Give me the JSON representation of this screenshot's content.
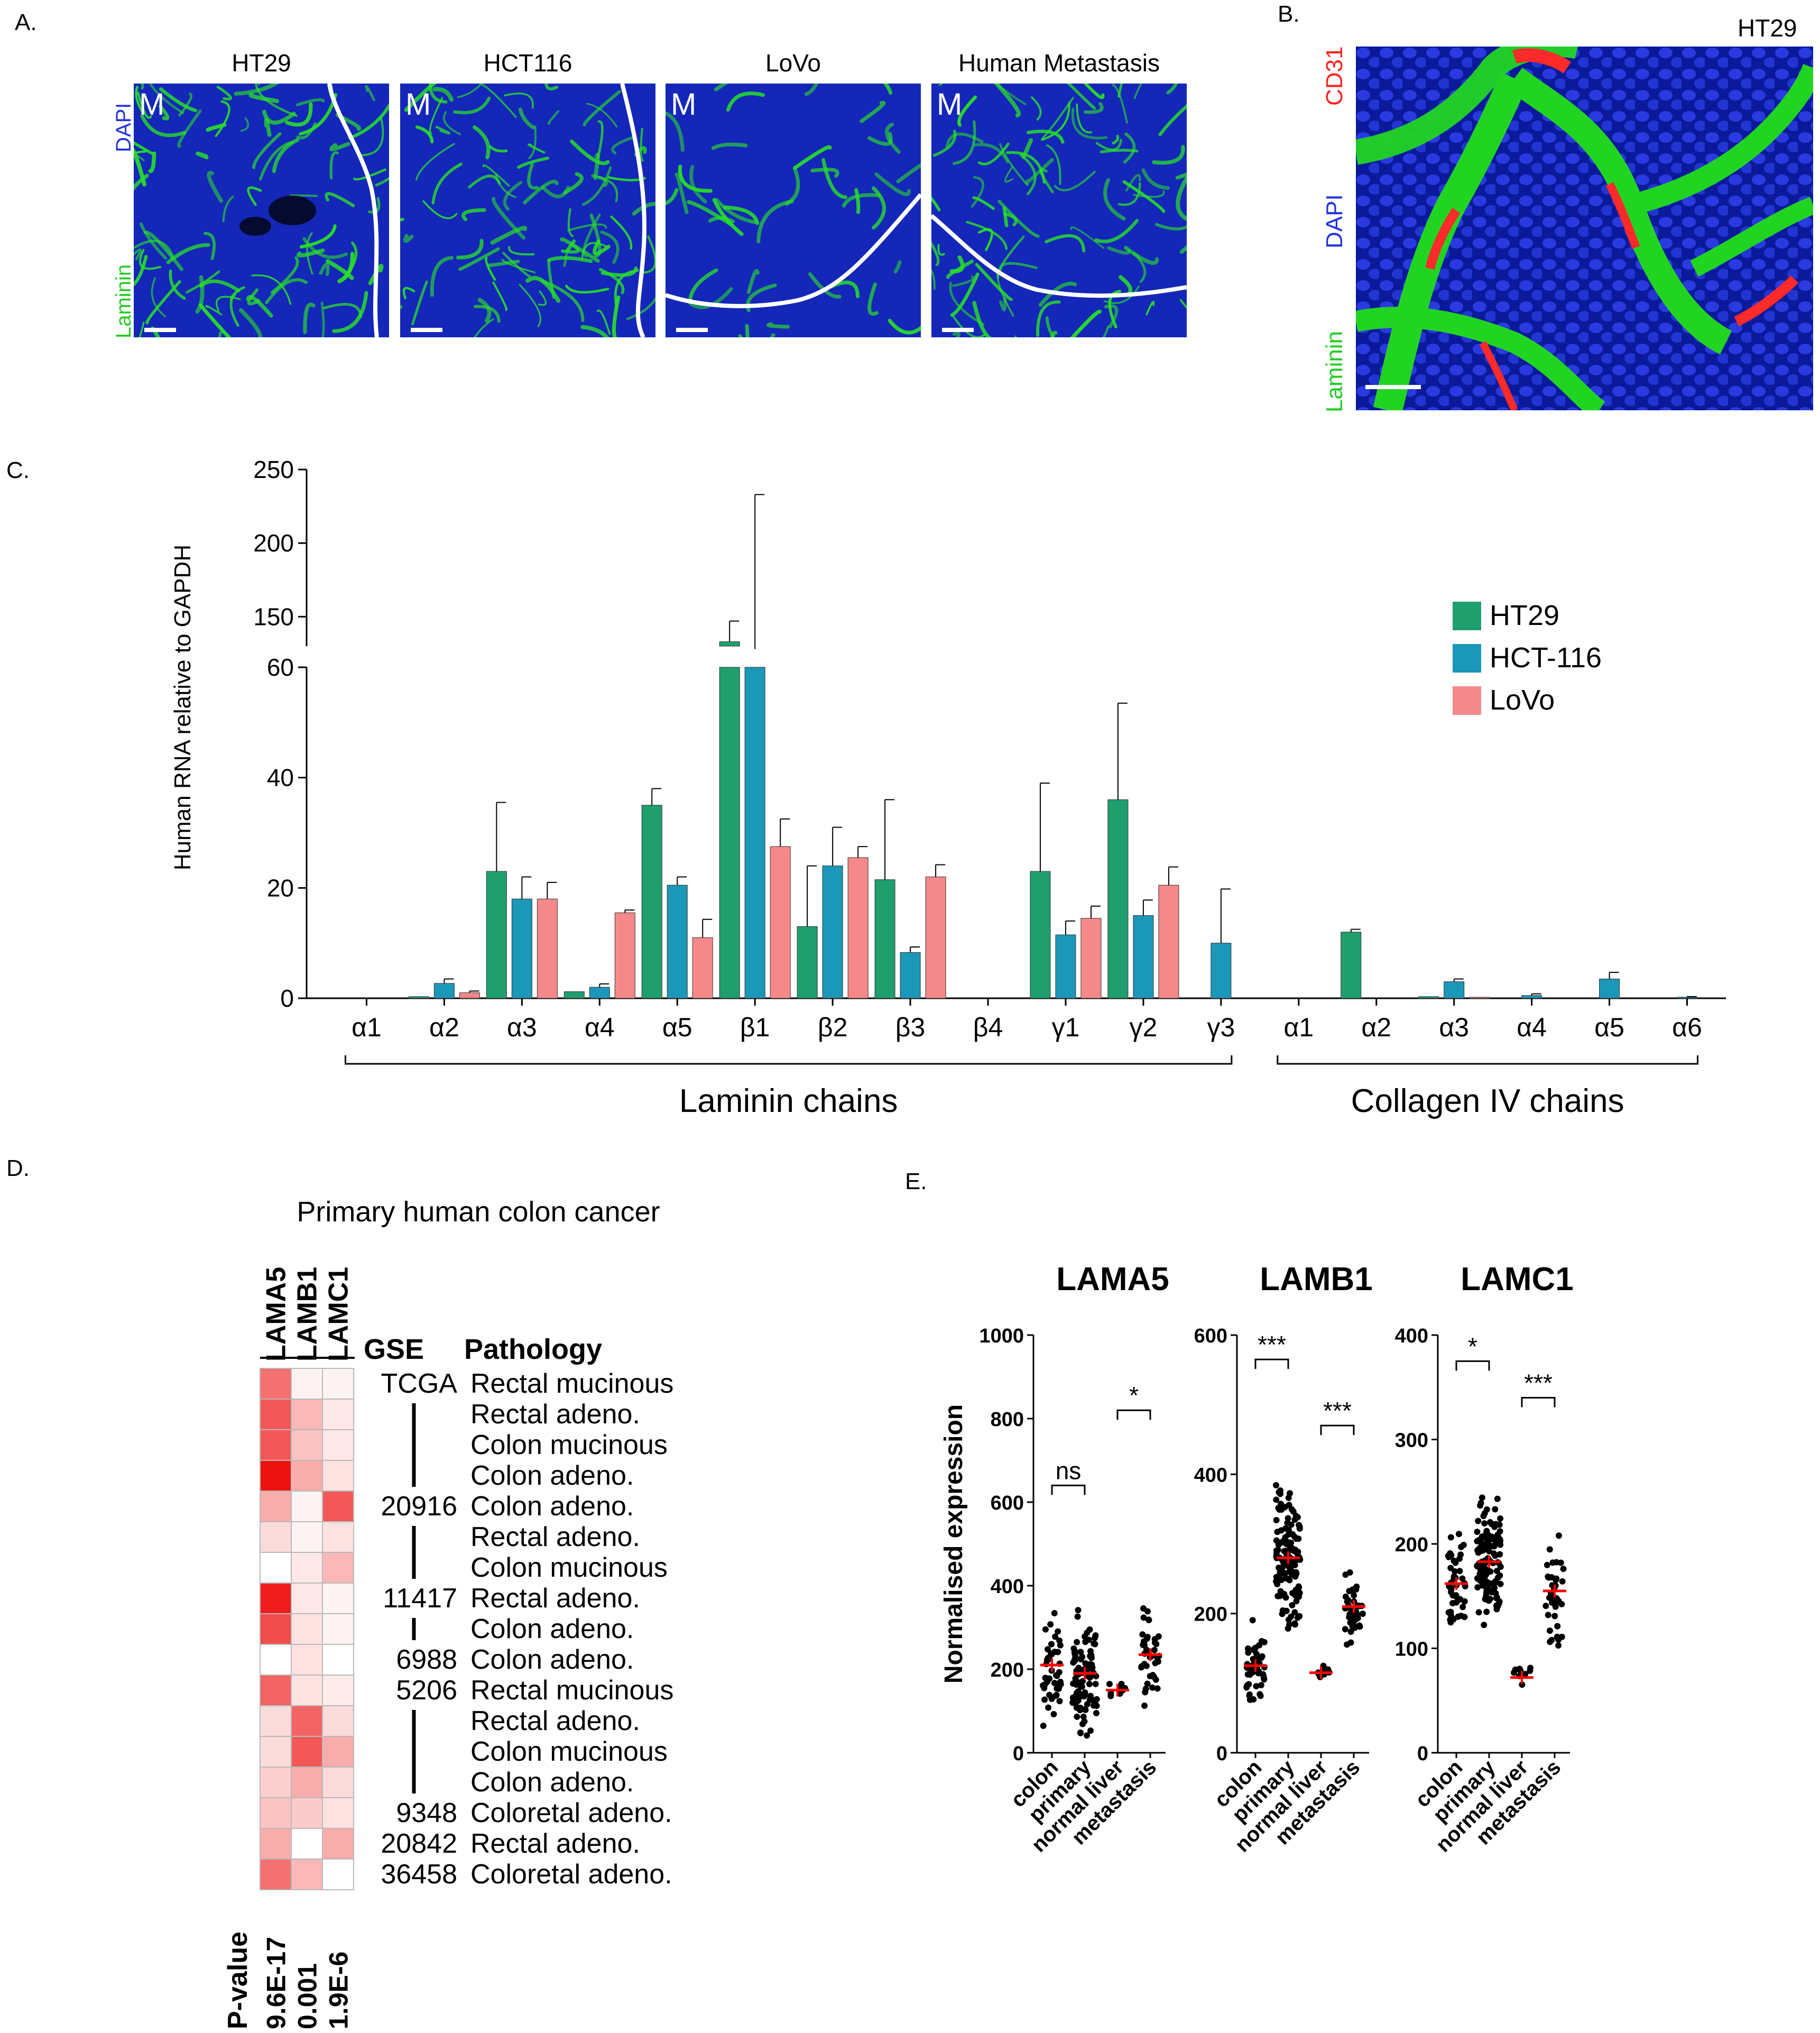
{
  "panel_labels": {
    "a": "A.",
    "b": "B.",
    "c": "C.",
    "d": "D.",
    "e": "E."
  },
  "panel_a": {
    "titles": [
      "HT29",
      "HCT116",
      "LoVo",
      "Human Metastasis"
    ],
    "region_label": "M",
    "stain_dapi": "DAPI",
    "stain_laminin": "Laminin",
    "colors": {
      "dapi": "#1a2fd6",
      "laminin": "#28e028",
      "boundary": "#ffffff"
    }
  },
  "panel_b": {
    "title": "HT29",
    "stain_cd31": "CD31",
    "stain_dapi": "DAPI",
    "stain_laminin": "Laminin",
    "colors": {
      "cd31": "#ff2a2a",
      "dapi": "#2233dd",
      "laminin": "#22d422"
    }
  },
  "chart_data": [
    {
      "type": "bar",
      "panel": "C",
      "ylabel": "Human RNA relative to GAPDH",
      "y_axis_lower": {
        "range": [
          0,
          60
        ],
        "ticks": [
          "0",
          "20",
          "40",
          "60"
        ]
      },
      "y_axis_upper": {
        "range": [
          130,
          250
        ],
        "ticks": [
          "150",
          "200",
          "250"
        ]
      },
      "axis_break": true,
      "categories": [
        "α1",
        "α2",
        "α3",
        "α4",
        "α5",
        "β1",
        "β2",
        "β3",
        "β4",
        "γ1",
        "γ2",
        "γ3",
        "α1",
        "α2",
        "α3",
        "α4",
        "α5",
        "α6"
      ],
      "groups": [
        {
          "label": "Laminin chains",
          "from": 0,
          "to": 11
        },
        {
          "label": "Collagen IV chains",
          "from": 12,
          "to": 17
        }
      ],
      "series": [
        {
          "name": "HT29",
          "color": "#1f9e6e",
          "values": [
            0,
            0.3,
            23,
            1.2,
            35,
            133,
            13,
            21.5,
            0,
            23,
            36,
            0,
            0,
            12,
            0.3,
            0,
            0,
            0
          ],
          "errors": [
            0,
            0,
            12.5,
            0,
            3,
            14,
            11,
            14.5,
            0,
            16,
            17.5,
            0,
            0,
            0.5,
            0,
            0,
            0,
            0
          ]
        },
        {
          "name": "HCT-116",
          "color": "#1b97b8",
          "values": [
            0,
            2.7,
            18,
            2,
            20.5,
            128,
            24,
            8.3,
            0,
            11.5,
            15,
            10,
            0,
            0,
            3,
            0.5,
            3.5,
            0.2
          ],
          "errors": [
            0,
            0.8,
            4,
            0.6,
            1.5,
            105,
            7,
            1,
            0,
            2.5,
            2.8,
            9.8,
            0,
            0,
            0.5,
            0.3,
            1.2,
            0.1
          ]
        },
        {
          "name": "LoVo",
          "color": "#f5898a",
          "values": [
            0,
            1,
            18,
            15.5,
            11,
            27.5,
            25.5,
            22,
            0,
            14.5,
            20.5,
            0,
            0,
            0,
            0.2,
            0,
            0,
            0
          ],
          "errors": [
            0,
            0.3,
            3,
            0.5,
            3.3,
            5,
            2,
            2.2,
            0,
            2.2,
            3.3,
            0,
            0,
            0,
            0,
            0,
            0,
            0
          ]
        }
      ],
      "legend_position": "right"
    },
    {
      "type": "heatmap",
      "panel": "D",
      "title": "Primary human colon cancer",
      "columns": [
        "LAMA5",
        "LAMB1",
        "LAMC1"
      ],
      "col_header_gse": "GSE",
      "col_header_pathology": "Pathology",
      "rows": [
        {
          "gse": "TCGA",
          "pathology": "Rectal mucinous",
          "values": [
            0.6,
            0.05,
            0.05
          ]
        },
        {
          "gse": "",
          "pathology": "Rectal adeno.",
          "values": [
            0.7,
            0.3,
            0.1
          ]
        },
        {
          "gse": "",
          "pathology": "Colon mucinous",
          "values": [
            0.7,
            0.25,
            0.1
          ]
        },
        {
          "gse": "",
          "pathology": "Colon adeno.",
          "values": [
            1.0,
            0.35,
            0.12
          ]
        },
        {
          "gse": "20916",
          "pathology": "Colon adeno.",
          "values": [
            0.35,
            0.05,
            0.7
          ]
        },
        {
          "gse": "",
          "pathology": "Rectal adeno.",
          "values": [
            0.15,
            0.05,
            0.12
          ]
        },
        {
          "gse": "",
          "pathology": "Colon mucinous",
          "values": [
            0.0,
            0.1,
            0.3
          ]
        },
        {
          "gse": "11417",
          "pathology": "Rectal adeno.",
          "values": [
            0.95,
            0.1,
            0.05
          ]
        },
        {
          "gse": "",
          "pathology": "Colon adeno.",
          "values": [
            0.75,
            0.12,
            0.05
          ]
        },
        {
          "gse": "6988",
          "pathology": "Colon adeno.",
          "values": [
            0.0,
            0.12,
            0.0
          ]
        },
        {
          "gse": "5206",
          "pathology": "Rectal mucinous",
          "values": [
            0.65,
            0.12,
            0.08
          ]
        },
        {
          "gse": "",
          "pathology": "Rectal adeno.",
          "values": [
            0.15,
            0.65,
            0.15
          ]
        },
        {
          "gse": "",
          "pathology": "Colon mucinous",
          "values": [
            0.15,
            0.7,
            0.35
          ]
        },
        {
          "gse": "",
          "pathology": "Colon adeno.",
          "values": [
            0.2,
            0.35,
            0.15
          ]
        },
        {
          "gse": "9348",
          "pathology": "Coloretal adeno.",
          "values": [
            0.25,
            0.22,
            0.12
          ]
        },
        {
          "gse": "20842",
          "pathology": "Rectal adeno.",
          "values": [
            0.35,
            0.0,
            0.35
          ]
        },
        {
          "gse": "36458",
          "pathology": "Coloretal adeno.",
          "values": [
            0.6,
            0.3,
            0.0
          ]
        }
      ],
      "pvalue_label": "P-value",
      "pvalues": [
        "9.6E-17",
        "0.001",
        "1.9E-6"
      ],
      "colors": {
        "low": "#ffffff",
        "high": "#ee1111"
      }
    },
    {
      "type": "scatter",
      "panel": "E",
      "ylabel": "Normalised expression",
      "categories": [
        "colon",
        "primary",
        "normal liver",
        "metastasis"
      ],
      "plots": [
        {
          "title": "LAMA5",
          "ylim": [
            0,
            1000
          ],
          "ticks": [
            "0",
            "200",
            "400",
            "600",
            "800",
            "1000"
          ],
          "means": [
            210,
            190,
            150,
            235
          ],
          "counts": [
            45,
            95,
            10,
            40
          ],
          "spreads": [
            180,
            190,
            30,
            190
          ],
          "sig": [
            {
              "from": 0,
              "to": 1,
              "label": "ns",
              "y": 640
            },
            {
              "from": 2,
              "to": 3,
              "label": "*",
              "y": 820
            }
          ]
        },
        {
          "title": "LAMB1",
          "ylim": [
            0,
            600
          ],
          "ticks": [
            "0",
            "200",
            "400",
            "600"
          ],
          "means": [
            125,
            280,
            115,
            210
          ],
          "counts": [
            45,
            130,
            10,
            40
          ],
          "spreads": [
            70,
            140,
            20,
            80
          ],
          "sig": [
            {
              "from": 0,
              "to": 1,
              "label": "***",
              "y": 565
            },
            {
              "from": 2,
              "to": 3,
              "label": "***",
              "y": 470
            }
          ]
        },
        {
          "title": "LAMC1",
          "ylim": [
            0,
            400
          ],
          "ticks": [
            "0",
            "100",
            "200",
            "300",
            "400"
          ],
          "means": [
            162,
            183,
            72,
            155
          ],
          "counts": [
            45,
            130,
            10,
            40
          ],
          "spreads": [
            60,
            75,
            20,
            70
          ],
          "sig": [
            {
              "from": 0,
              "to": 1,
              "label": "*",
              "y": 375
            },
            {
              "from": 2,
              "to": 3,
              "label": "***",
              "y": 340
            }
          ]
        }
      ],
      "colors": {
        "dots": "#000000",
        "mean": "#ff0000"
      }
    }
  ]
}
